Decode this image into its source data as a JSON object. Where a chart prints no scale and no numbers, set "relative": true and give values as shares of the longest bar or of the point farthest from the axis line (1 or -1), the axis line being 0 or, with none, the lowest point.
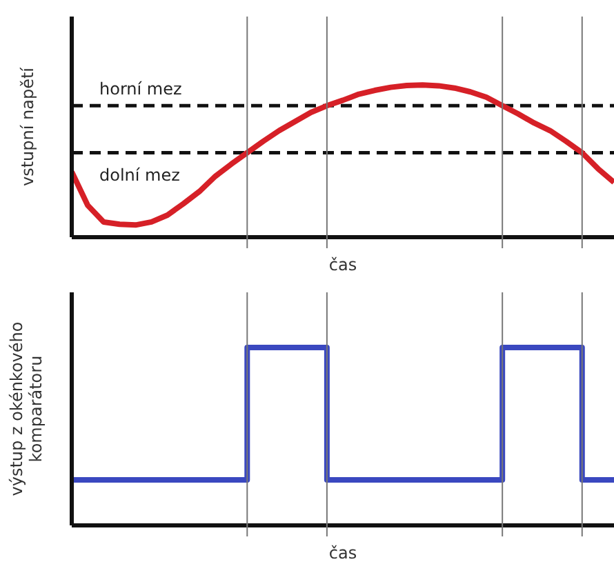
{
  "chart_data": [
    {
      "type": "line",
      "ylabel": "vstupní napětí",
      "xlabel": "čas",
      "relative": true,
      "grid": "x",
      "categories": [
        null,
        null,
        null,
        null,
        null,
        null,
        null,
        null,
        null,
        null,
        null,
        null,
        null,
        null,
        null,
        null,
        null,
        null,
        null,
        null,
        null,
        null,
        null,
        null,
        null,
        null,
        null,
        null,
        null,
        null,
        null,
        null,
        null,
        null,
        null
      ],
      "series": [
        {
          "color": "#d62027",
          "values": [
            0.43,
            0.21,
            0.1,
            0.085,
            0.08,
            0.1,
            0.145,
            0.22,
            0.3,
            0.4,
            0.48,
            0.555,
            0.63,
            0.7,
            0.76,
            0.82,
            0.864,
            0.9,
            0.94,
            0.965,
            0.985,
            0.997,
            1,
            0.995,
            0.98,
            0.955,
            0.92,
            0.864,
            0.81,
            0.75,
            0.7,
            0.63,
            0.555,
            0.45,
            0.36
          ]
        }
      ],
      "ref_lines": [
        {
          "axis": "y",
          "value": 0.864,
          "label": "horní mez",
          "color": "#111111",
          "line_style": "dashed"
        },
        {
          "axis": "y",
          "value": 0.555,
          "label": "dolní mez",
          "color": "#111111",
          "line_style": "dashed"
        }
      ]
    },
    {
      "type": "step",
      "ylabel": "výstup z okénkového komparátoru",
      "xlabel": "čas",
      "relative": true,
      "grid": "x",
      "categories": [
        null,
        null,
        null,
        null,
        null,
        null,
        null,
        null,
        null,
        null,
        null,
        null,
        null,
        null,
        null,
        null,
        null,
        null,
        null,
        null,
        null,
        null,
        null,
        null,
        null,
        null,
        null,
        null,
        null,
        null,
        null,
        null,
        null,
        null,
        null
      ],
      "series": [
        {
          "color": "#3a48c0",
          "values": [
            0.256,
            0.256,
            0.256,
            0.256,
            0.256,
            0.256,
            0.256,
            0.256,
            0.256,
            0.256,
            0.256,
            1,
            1,
            1,
            1,
            1,
            0.256,
            0.256,
            0.256,
            0.256,
            0.256,
            0.256,
            0.256,
            0.256,
            0.256,
            0.256,
            0.256,
            1,
            1,
            1,
            1,
            1,
            0.256,
            0.256,
            0.256
          ]
        }
      ]
    }
  ]
}
